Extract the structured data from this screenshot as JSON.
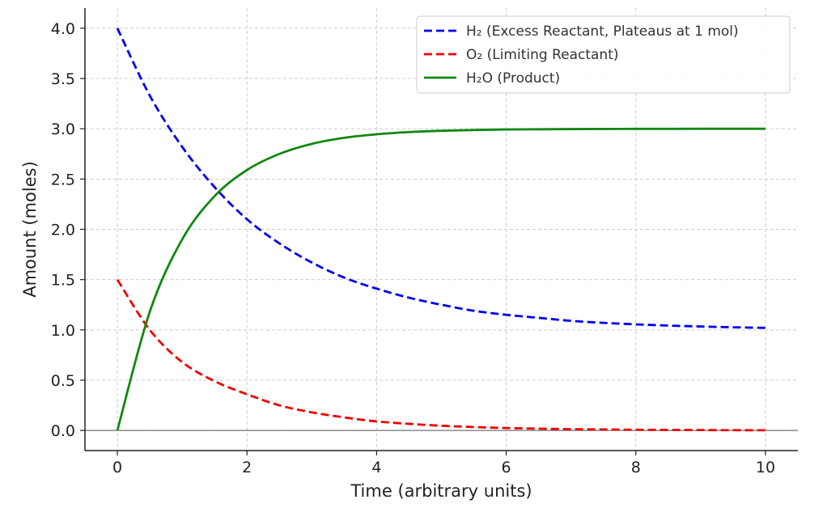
{
  "chart_data": {
    "type": "line",
    "title": "",
    "xlabel": "Time (arbitrary units)",
    "ylabel": "Amount (moles)",
    "xlim": [
      -0.5,
      10.5
    ],
    "ylim": [
      -0.2,
      4.2
    ],
    "xticks": [
      0,
      2,
      4,
      6,
      8,
      10
    ],
    "yticks": [
      0.0,
      0.5,
      1.0,
      1.5,
      2.0,
      2.5,
      3.0,
      3.5,
      4.0
    ],
    "xtick_labels": [
      "0",
      "2",
      "4",
      "6",
      "8",
      "10"
    ],
    "ytick_labels": [
      "0.0",
      "0.5",
      "1.0",
      "1.5",
      "2.0",
      "2.5",
      "3.0",
      "3.5",
      "4.0"
    ],
    "grid": true,
    "legend_position": "top-right",
    "x": [
      0,
      0.5,
      1,
      1.5,
      2,
      2.5,
      3,
      3.5,
      4,
      4.5,
      5,
      5.5,
      6,
      6.5,
      7,
      7.5,
      8,
      8.5,
      9,
      9.5,
      10
    ],
    "series": [
      {
        "name": "H₂ (Excess Reactant, Plateaus at 1 mol)",
        "color": "#0000ee",
        "style": "dashed",
        "values": [
          4.0,
          3.33,
          2.82,
          2.42,
          2.1,
          1.86,
          1.67,
          1.52,
          1.41,
          1.32,
          1.25,
          1.19,
          1.15,
          1.12,
          1.09,
          1.07,
          1.055,
          1.043,
          1.034,
          1.026,
          1.02
        ]
      },
      {
        "name": "O₂ (Limiting Reactant)",
        "color": "#ee0000",
        "style": "dashed",
        "values": [
          1.5,
          1.0,
          0.68,
          0.49,
          0.36,
          0.25,
          0.18,
          0.13,
          0.09,
          0.066,
          0.047,
          0.034,
          0.024,
          0.018,
          0.013,
          0.01,
          0.007,
          0.005,
          0.004,
          0.003,
          0.002
        ]
      },
      {
        "name": "H₂O (Product)",
        "color": "#118811",
        "style": "solid",
        "values": [
          0.0,
          1.18,
          1.9,
          2.33,
          2.59,
          2.75,
          2.85,
          2.91,
          2.945,
          2.967,
          2.98,
          2.988,
          2.993,
          2.995,
          2.997,
          2.998,
          2.999,
          2.999,
          3.0,
          3.0,
          3.0
        ]
      }
    ]
  }
}
